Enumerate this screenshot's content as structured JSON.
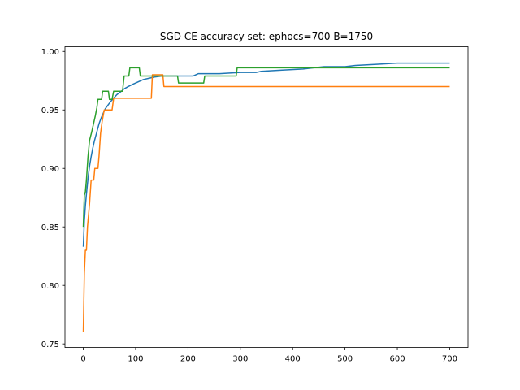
{
  "chart_data": {
    "type": "line",
    "title": "SGD CE accuracy set: ephocs=700 B=1750",
    "xlabel": "",
    "ylabel": "",
    "xlim": [
      -35,
      735
    ],
    "ylim": [
      0.747,
      1.004
    ],
    "x_ticks": [
      0,
      100,
      200,
      300,
      400,
      500,
      600,
      700
    ],
    "y_ticks": [
      0.75,
      0.8,
      0.85,
      0.9,
      0.95,
      1.0
    ],
    "x_tick_labels": [
      "0",
      "100",
      "200",
      "300",
      "400",
      "500",
      "600",
      "700"
    ],
    "y_tick_labels": [
      "0.75",
      "0.80",
      "0.85",
      "0.90",
      "0.95",
      "1.00"
    ],
    "grid": false,
    "legend": "none",
    "series": [
      {
        "color": "#1f77b4",
        "points": [
          [
            0,
            0.833
          ],
          [
            2,
            0.855
          ],
          [
            4,
            0.868
          ],
          [
            6,
            0.878
          ],
          [
            8,
            0.887
          ],
          [
            10,
            0.895
          ],
          [
            12,
            0.902
          ],
          [
            15,
            0.91
          ],
          [
            18,
            0.917
          ],
          [
            21,
            0.923
          ],
          [
            24,
            0.928
          ],
          [
            27,
            0.933
          ],
          [
            30,
            0.938
          ],
          [
            34,
            0.943
          ],
          [
            38,
            0.947
          ],
          [
            42,
            0.951
          ],
          [
            47,
            0.954
          ],
          [
            52,
            0.957
          ],
          [
            58,
            0.96
          ],
          [
            64,
            0.963
          ],
          [
            70,
            0.965
          ],
          [
            78,
            0.968
          ],
          [
            86,
            0.97
          ],
          [
            95,
            0.972
          ],
          [
            105,
            0.974
          ],
          [
            115,
            0.976
          ],
          [
            125,
            0.977
          ],
          [
            135,
            0.978
          ],
          [
            150,
            0.979
          ],
          [
            180,
            0.979
          ],
          [
            210,
            0.979
          ],
          [
            220,
            0.981
          ],
          [
            260,
            0.981
          ],
          [
            300,
            0.982
          ],
          [
            330,
            0.982
          ],
          [
            340,
            0.983
          ],
          [
            380,
            0.984
          ],
          [
            420,
            0.985
          ],
          [
            440,
            0.986
          ],
          [
            460,
            0.987
          ],
          [
            500,
            0.987
          ],
          [
            520,
            0.988
          ],
          [
            560,
            0.989
          ],
          [
            600,
            0.99
          ],
          [
            650,
            0.99
          ],
          [
            700,
            0.99
          ]
        ]
      },
      {
        "color": "#ff7f0e",
        "points": [
          [
            0,
            0.76
          ],
          [
            2,
            0.81
          ],
          [
            4,
            0.83
          ],
          [
            6,
            0.83
          ],
          [
            8,
            0.85
          ],
          [
            10,
            0.86
          ],
          [
            12,
            0.87
          ],
          [
            15,
            0.89
          ],
          [
            20,
            0.89
          ],
          [
            22,
            0.9
          ],
          [
            28,
            0.9
          ],
          [
            30,
            0.91
          ],
          [
            33,
            0.93
          ],
          [
            36,
            0.94
          ],
          [
            40,
            0.95
          ],
          [
            55,
            0.95
          ],
          [
            58,
            0.96
          ],
          [
            130,
            0.96
          ],
          [
            132,
            0.98
          ],
          [
            152,
            0.98
          ],
          [
            154,
            0.97
          ],
          [
            700,
            0.97
          ]
        ]
      },
      {
        "color": "#2ca02c",
        "points": [
          [
            0,
            0.85
          ],
          [
            2,
            0.877
          ],
          [
            4,
            0.88
          ],
          [
            6,
            0.89
          ],
          [
            9,
            0.91
          ],
          [
            12,
            0.924
          ],
          [
            16,
            0.931
          ],
          [
            19,
            0.937
          ],
          [
            23,
            0.945
          ],
          [
            26,
            0.952
          ],
          [
            28,
            0.959
          ],
          [
            35,
            0.959
          ],
          [
            37,
            0.966
          ],
          [
            48,
            0.966
          ],
          [
            50,
            0.959
          ],
          [
            55,
            0.959
          ],
          [
            58,
            0.966
          ],
          [
            75,
            0.966
          ],
          [
            78,
            0.979
          ],
          [
            87,
            0.979
          ],
          [
            89,
            0.986
          ],
          [
            107,
            0.986
          ],
          [
            109,
            0.979
          ],
          [
            180,
            0.979
          ],
          [
            182,
            0.973
          ],
          [
            230,
            0.973
          ],
          [
            232,
            0.979
          ],
          [
            292,
            0.979
          ],
          [
            294,
            0.986
          ],
          [
            700,
            0.986
          ]
        ]
      }
    ]
  }
}
